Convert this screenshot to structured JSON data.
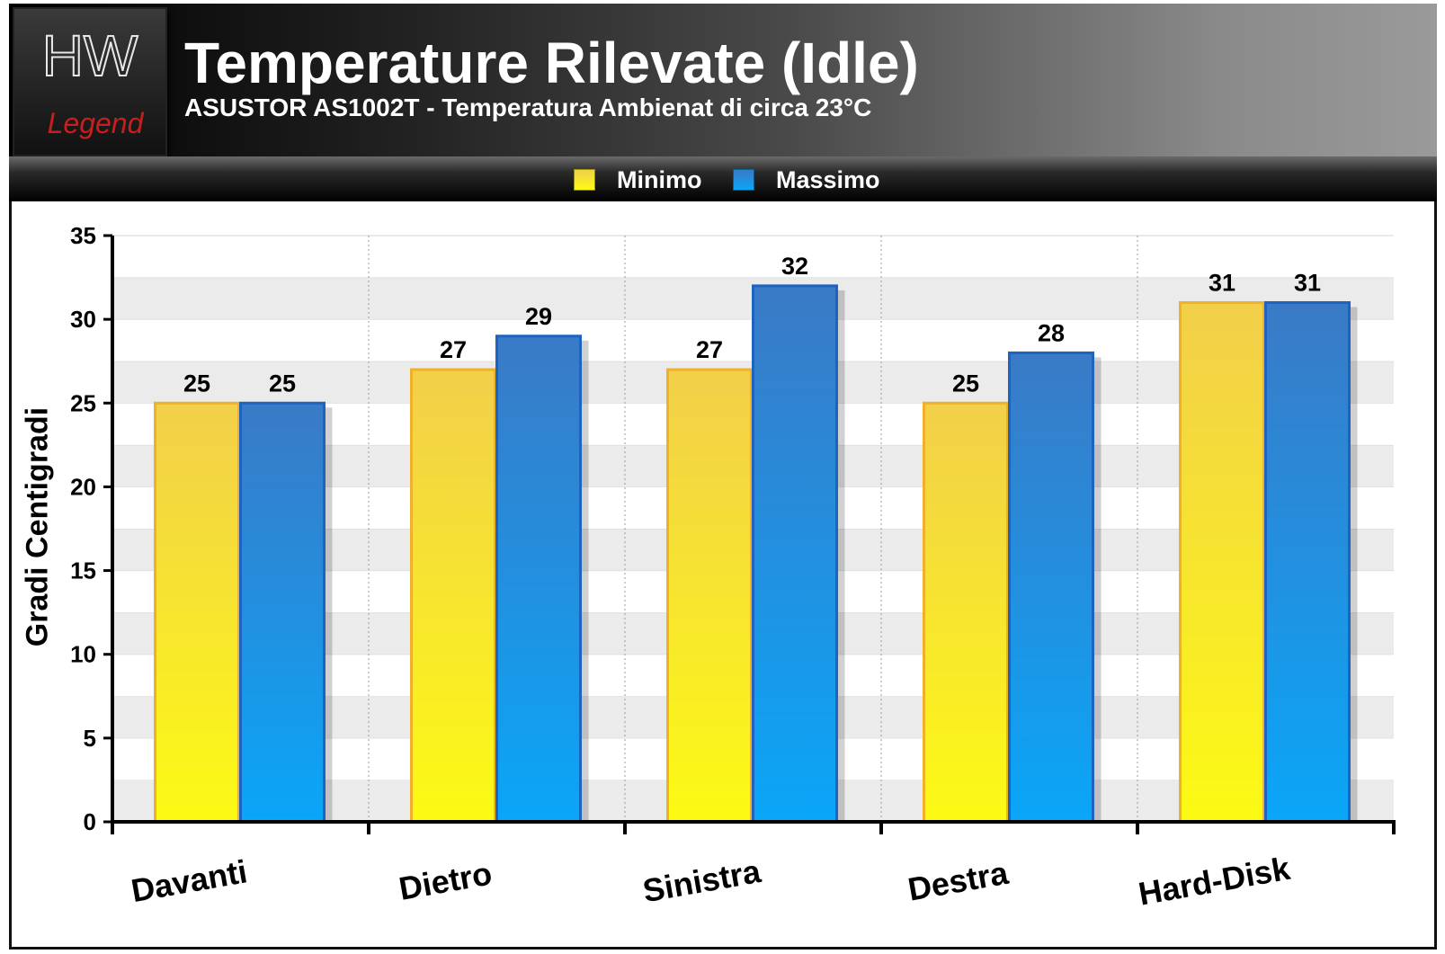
{
  "header": {
    "logo_text_top": "HW",
    "logo_text_bottom": "Legend",
    "title": "Temperature Rilevate  (Idle)",
    "subtitle": "ASUSTOR AS1002T - Temperatura Ambienat di circa 23°C"
  },
  "legend": {
    "minimo_label": "Minimo",
    "massimo_label": "Massimo"
  },
  "colors": {
    "minimo_top": "#f2cf4a",
    "minimo_bottom": "#fcfa14",
    "minimo_border": "#f0b028",
    "massimo_top": "#3a7ac6",
    "massimo_bottom": "#0aa6f8",
    "massimo_border": "#1d63c0"
  },
  "chart_data": {
    "type": "bar",
    "title": "Temperature Rilevate  (Idle)",
    "subtitle": "ASUSTOR AS1002T - Temperatura Ambienat di circa 23°C",
    "categories": [
      "Davanti",
      "Dietro",
      "Sinistra",
      "Destra",
      "Hard-Disk"
    ],
    "series": [
      {
        "name": "Minimo",
        "values": [
          25,
          27,
          27,
          25,
          31
        ]
      },
      {
        "name": "Massimo",
        "values": [
          25,
          29,
          32,
          28,
          31
        ]
      }
    ],
    "xlabel": "",
    "ylabel": "Gradi Centigradi",
    "ylim": [
      0,
      35
    ],
    "yticks": [
      0,
      5,
      10,
      15,
      20,
      25,
      30,
      35
    ],
    "grid": true,
    "legend_position": "top"
  }
}
